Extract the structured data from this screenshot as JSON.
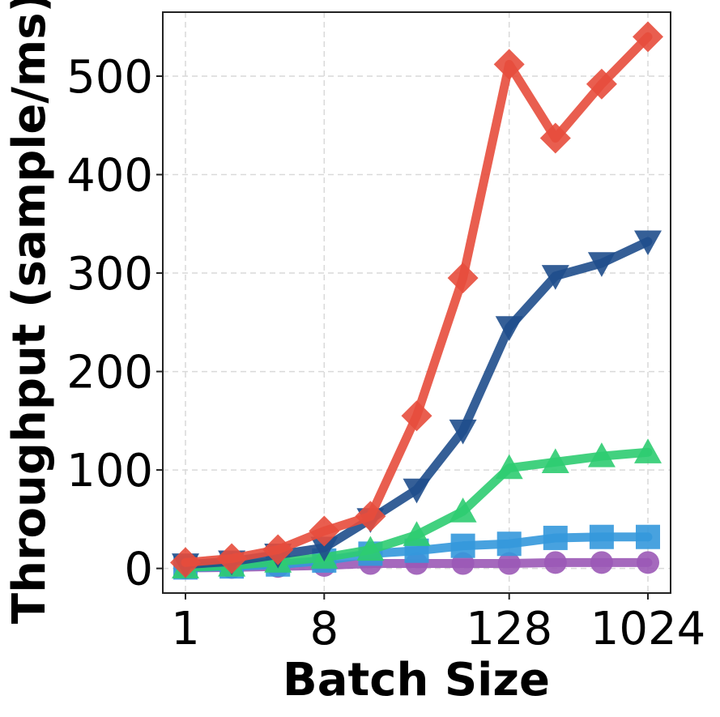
{
  "chart_data": {
    "type": "line",
    "title": "",
    "xlabel": "Batch Size",
    "ylabel": "Throughput (sample/ms)",
    "x_scale": "log2",
    "x": [
      1,
      2,
      4,
      8,
      16,
      32,
      64,
      128,
      256,
      512,
      1024
    ],
    "xticks": [
      1,
      8,
      128,
      1024
    ],
    "xtick_labels": [
      "1",
      "8",
      "128",
      "1024"
    ],
    "ylim": [
      -25,
      565
    ],
    "yticks": [
      0,
      100,
      200,
      300,
      400,
      500
    ],
    "ytick_labels": [
      "0",
      "100",
      "200",
      "300",
      "400",
      "500"
    ],
    "grid": true,
    "series": [
      {
        "color": "#9b59b6",
        "marker": "circle",
        "values": [
          0.5,
          1,
          2,
          3,
          5,
          5,
          5,
          5,
          6,
          6,
          6
        ]
      },
      {
        "color": "#3498db",
        "marker": "square",
        "values": [
          1,
          2,
          4,
          8,
          15,
          18,
          23,
          25,
          31,
          32,
          32
        ]
      },
      {
        "color": "#2ecc71",
        "marker": "triangle-up",
        "values": [
          1,
          3,
          7,
          11,
          19,
          34,
          58,
          102,
          108,
          114,
          118
        ]
      },
      {
        "color": "#1f4e8c",
        "marker": "triangle-down",
        "values": [
          4,
          7,
          14,
          21,
          50,
          80,
          140,
          245,
          297,
          310,
          332
        ]
      },
      {
        "color": "#e74c3c",
        "marker": "diamond",
        "values": [
          6,
          10,
          19,
          38,
          53,
          155,
          295,
          512,
          437,
          492,
          540
        ]
      }
    ]
  }
}
